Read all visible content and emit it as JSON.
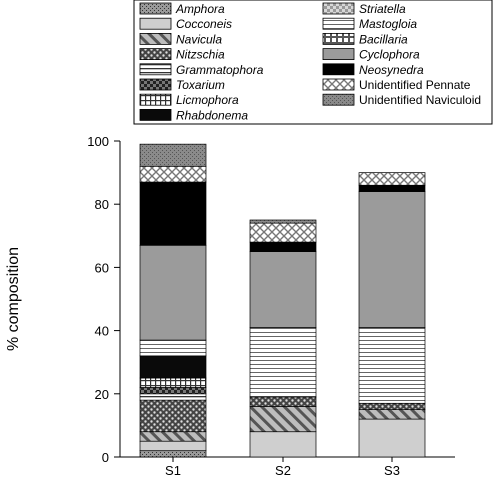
{
  "chart_data": {
    "type": "bar",
    "stacked": true,
    "categories": [
      "S1",
      "S2",
      "S3"
    ],
    "ylabel": "% composition",
    "xlabel": "",
    "ylim": [
      0,
      100
    ],
    "yticks": [
      0,
      20,
      40,
      60,
      80,
      100
    ],
    "legend_placement": "top",
    "series": [
      {
        "name": "Amphora",
        "italic": true,
        "values": [
          2,
          0,
          0
        ]
      },
      {
        "name": "Cocconeis",
        "italic": true,
        "values": [
          3,
          8,
          12
        ]
      },
      {
        "name": "Navicula",
        "italic": true,
        "values": [
          3,
          8,
          3
        ]
      },
      {
        "name": "Nitzschia",
        "italic": true,
        "values": [
          10,
          3,
          2
        ]
      },
      {
        "name": "Grammatophora",
        "italic": true,
        "values": [
          2,
          0,
          0
        ]
      },
      {
        "name": "Toxarium",
        "italic": true,
        "values": [
          2,
          0,
          0
        ]
      },
      {
        "name": "Licmophora",
        "italic": true,
        "values": [
          3,
          0,
          0
        ]
      },
      {
        "name": "Rhabdonema",
        "italic": true,
        "values": [
          7,
          0,
          0
        ]
      },
      {
        "name": "Striatella",
        "italic": true,
        "values": [
          0,
          0,
          0
        ]
      },
      {
        "name": "Mastogloia",
        "italic": true,
        "values": [
          5,
          22,
          24
        ]
      },
      {
        "name": "Bacillaria",
        "italic": true,
        "values": [
          0,
          0,
          0
        ]
      },
      {
        "name": "Cyclophora",
        "italic": true,
        "values": [
          30,
          24,
          43
        ]
      },
      {
        "name": "Neosynedra",
        "italic": true,
        "values": [
          20,
          3,
          2
        ]
      },
      {
        "name": "Unidentified Pennate",
        "italic": false,
        "values": [
          5,
          6,
          4
        ]
      },
      {
        "name": "Unidentified Naviculoid",
        "italic": false,
        "values": [
          7,
          1,
          0
        ]
      }
    ],
    "extra_segments_note_values": {
      "S2": {
        "Bacillaria_like": 6,
        "Striatella_like": 2,
        "Cocconeis_bottom": 6
      },
      "S3": {
        "Bacillaria_like": 8
      }
    }
  }
}
